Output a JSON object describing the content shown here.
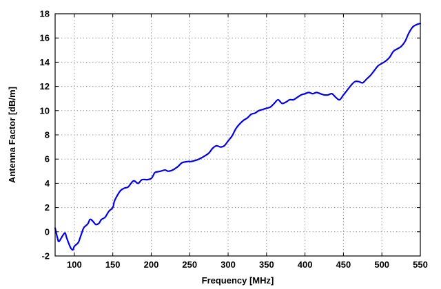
{
  "chart_data": {
    "type": "line",
    "xlabel": "Frequency [MHz]",
    "ylabel": "Antenna Factor [dB/m]",
    "xlim": [
      75,
      550
    ],
    "ylim": [
      -2,
      18
    ],
    "xticks": [
      100,
      150,
      200,
      250,
      300,
      350,
      400,
      450,
      500,
      550
    ],
    "yticks": [
      -2,
      0,
      2,
      4,
      6,
      8,
      10,
      12,
      14,
      16,
      18
    ],
    "grid": true,
    "series": [
      {
        "color": "#0000ee",
        "points": [
          [
            75,
            0.3
          ],
          [
            78,
            -0.5
          ],
          [
            80,
            -0.8
          ],
          [
            85,
            -0.3
          ],
          [
            88,
            -0.1
          ],
          [
            90,
            -0.5
          ],
          [
            95,
            -1.3
          ],
          [
            98,
            -1.5
          ],
          [
            100,
            -1.2
          ],
          [
            105,
            -0.9
          ],
          [
            108,
            -0.4
          ],
          [
            112,
            0.3
          ],
          [
            115,
            0.5
          ],
          [
            118,
            0.7
          ],
          [
            120,
            1.0
          ],
          [
            122,
            1.0
          ],
          [
            125,
            0.8
          ],
          [
            128,
            0.6
          ],
          [
            132,
            0.7
          ],
          [
            135,
            1.0
          ],
          [
            140,
            1.2
          ],
          [
            145,
            1.7
          ],
          [
            150,
            2.0
          ],
          [
            152,
            2.5
          ],
          [
            155,
            2.9
          ],
          [
            160,
            3.4
          ],
          [
            165,
            3.6
          ],
          [
            170,
            3.7
          ],
          [
            175,
            4.1
          ],
          [
            178,
            4.2
          ],
          [
            183,
            4.0
          ],
          [
            188,
            4.3
          ],
          [
            195,
            4.3
          ],
          [
            200,
            4.4
          ],
          [
            203,
            4.7
          ],
          [
            205,
            4.9
          ],
          [
            212,
            5.0
          ],
          [
            218,
            5.1
          ],
          [
            222,
            5.0
          ],
          [
            228,
            5.1
          ],
          [
            235,
            5.4
          ],
          [
            240,
            5.7
          ],
          [
            248,
            5.8
          ],
          [
            252,
            5.8
          ],
          [
            258,
            5.9
          ],
          [
            262,
            6.0
          ],
          [
            268,
            6.2
          ],
          [
            275,
            6.5
          ],
          [
            280,
            6.9
          ],
          [
            285,
            7.1
          ],
          [
            290,
            7.0
          ],
          [
            295,
            7.1
          ],
          [
            300,
            7.5
          ],
          [
            305,
            7.9
          ],
          [
            310,
            8.5
          ],
          [
            315,
            8.9
          ],
          [
            320,
            9.2
          ],
          [
            325,
            9.4
          ],
          [
            330,
            9.7
          ],
          [
            335,
            9.8
          ],
          [
            340,
            10.0
          ],
          [
            345,
            10.1
          ],
          [
            350,
            10.2
          ],
          [
            355,
            10.3
          ],
          [
            360,
            10.6
          ],
          [
            365,
            10.9
          ],
          [
            370,
            10.6
          ],
          [
            375,
            10.7
          ],
          [
            380,
            10.9
          ],
          [
            385,
            10.9
          ],
          [
            390,
            11.1
          ],
          [
            395,
            11.3
          ],
          [
            400,
            11.4
          ],
          [
            405,
            11.5
          ],
          [
            410,
            11.4
          ],
          [
            415,
            11.5
          ],
          [
            420,
            11.4
          ],
          [
            425,
            11.3
          ],
          [
            430,
            11.3
          ],
          [
            435,
            11.4
          ],
          [
            440,
            11.1
          ],
          [
            445,
            10.9
          ],
          [
            450,
            11.3
          ],
          [
            455,
            11.7
          ],
          [
            460,
            12.1
          ],
          [
            465,
            12.4
          ],
          [
            470,
            12.4
          ],
          [
            475,
            12.3
          ],
          [
            480,
            12.6
          ],
          [
            485,
            12.9
          ],
          [
            490,
            13.3
          ],
          [
            495,
            13.7
          ],
          [
            500,
            13.9
          ],
          [
            505,
            14.1
          ],
          [
            510,
            14.4
          ],
          [
            515,
            14.9
          ],
          [
            520,
            15.1
          ],
          [
            525,
            15.3
          ],
          [
            530,
            15.7
          ],
          [
            535,
            16.4
          ],
          [
            540,
            16.9
          ],
          [
            545,
            17.1
          ],
          [
            550,
            17.2
          ]
        ]
      }
    ]
  }
}
